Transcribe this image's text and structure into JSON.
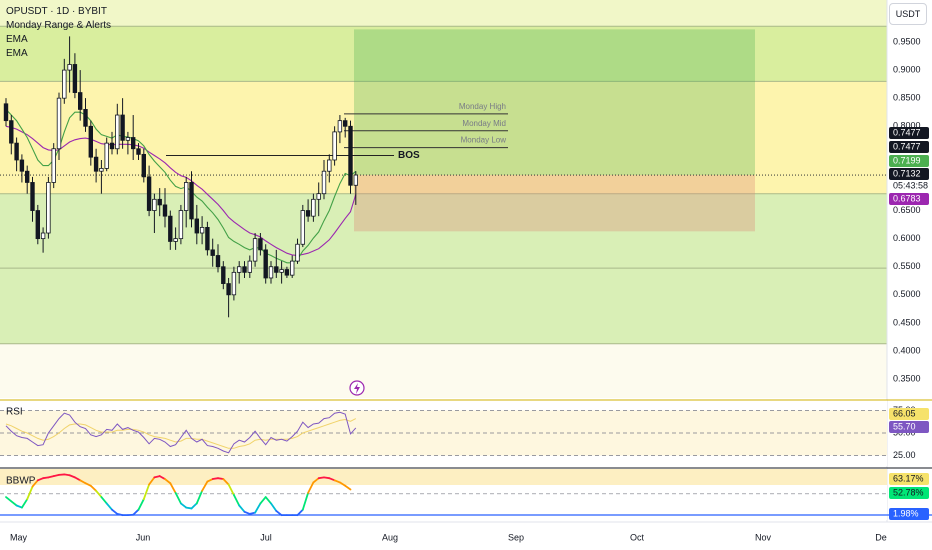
{
  "symbol": {
    "title": "OPUSDT · 1D · BYBIT",
    "indicator_1": "Monday Range & Alerts",
    "indicator_2": "EMA",
    "indicator_3": "EMA"
  },
  "currency_button": "USDT",
  "chart_data": [
    {
      "type": "candlestick",
      "title": "OPUSDT · 1D · BYBIT",
      "x_labels": [
        "May",
        "Jun",
        "Jul",
        "Aug",
        "Sep",
        "Oct",
        "Nov",
        "De"
      ],
      "price_ticks": [
        "0.9500",
        "0.9000",
        "0.8500",
        "0.8000",
        "0.6500",
        "0.6000",
        "0.5500",
        "0.5000",
        "0.4500",
        "0.4000",
        "0.3500"
      ],
      "ylim": [
        0.33,
        0.99
      ],
      "price_tags": [
        {
          "label": "0.7477",
          "color": "#131722"
        },
        {
          "label": "0.7477",
          "color": "#131722"
        },
        {
          "label": "0.7199",
          "color": "#4caf50"
        },
        {
          "label": "0.7132",
          "color": "#131722"
        },
        {
          "label": "05:43:58",
          "color": "#131722"
        },
        {
          "label": "0.6783",
          "color": "#9c27b0"
        }
      ],
      "current_price": 0.7132,
      "countdown": "05:43:58",
      "ema_fast_last": 0.7199,
      "ema_slow_last": 0.6783,
      "annotations": {
        "monday_high": "Monday High",
        "monday_mid": "Monday Mid",
        "monday_low": "Monday Low",
        "bos": "BOS"
      },
      "levels": {
        "monday_high": 0.822,
        "monday_mid": 0.792,
        "monday_low": 0.762,
        "bos": 0.762,
        "top_line": 0.978,
        "band_top": 0.88,
        "band_bottom": 0.68,
        "lower_line": 0.5475,
        "green_bottom": 0.413,
        "long_target": 0.9725,
        "long_entry": 0.7132,
        "long_stop": 0.613
      },
      "candles": [
        {
          "o": 0.84,
          "h": 0.85,
          "l": 0.8,
          "c": 0.81
        },
        {
          "o": 0.81,
          "h": 0.82,
          "l": 0.75,
          "c": 0.77
        },
        {
          "o": 0.77,
          "h": 0.78,
          "l": 0.72,
          "c": 0.74
        },
        {
          "o": 0.74,
          "h": 0.75,
          "l": 0.7,
          "c": 0.72
        },
        {
          "o": 0.72,
          "h": 0.73,
          "l": 0.68,
          "c": 0.7
        },
        {
          "o": 0.7,
          "h": 0.71,
          "l": 0.63,
          "c": 0.65
        },
        {
          "o": 0.65,
          "h": 0.66,
          "l": 0.59,
          "c": 0.6
        },
        {
          "o": 0.6,
          "h": 0.62,
          "l": 0.575,
          "c": 0.61
        },
        {
          "o": 0.61,
          "h": 0.71,
          "l": 0.6,
          "c": 0.7
        },
        {
          "o": 0.7,
          "h": 0.77,
          "l": 0.69,
          "c": 0.76
        },
        {
          "o": 0.76,
          "h": 0.86,
          "l": 0.74,
          "c": 0.85
        },
        {
          "o": 0.85,
          "h": 0.92,
          "l": 0.84,
          "c": 0.9
        },
        {
          "o": 0.9,
          "h": 0.96,
          "l": 0.86,
          "c": 0.91
        },
        {
          "o": 0.91,
          "h": 0.93,
          "l": 0.85,
          "c": 0.86
        },
        {
          "o": 0.86,
          "h": 0.9,
          "l": 0.81,
          "c": 0.83
        },
        {
          "o": 0.83,
          "h": 0.85,
          "l": 0.79,
          "c": 0.8
        },
        {
          "o": 0.8,
          "h": 0.81,
          "l": 0.73,
          "c": 0.745
        },
        {
          "o": 0.745,
          "h": 0.76,
          "l": 0.7,
          "c": 0.72
        },
        {
          "o": 0.72,
          "h": 0.74,
          "l": 0.68,
          "c": 0.725
        },
        {
          "o": 0.725,
          "h": 0.78,
          "l": 0.72,
          "c": 0.77
        },
        {
          "o": 0.77,
          "h": 0.79,
          "l": 0.75,
          "c": 0.76
        },
        {
          "o": 0.76,
          "h": 0.84,
          "l": 0.75,
          "c": 0.82
        },
        {
          "o": 0.82,
          "h": 0.85,
          "l": 0.76,
          "c": 0.775
        },
        {
          "o": 0.775,
          "h": 0.79,
          "l": 0.75,
          "c": 0.78
        },
        {
          "o": 0.78,
          "h": 0.82,
          "l": 0.74,
          "c": 0.76
        },
        {
          "o": 0.76,
          "h": 0.77,
          "l": 0.74,
          "c": 0.75
        },
        {
          "o": 0.75,
          "h": 0.76,
          "l": 0.7,
          "c": 0.71
        },
        {
          "o": 0.71,
          "h": 0.73,
          "l": 0.64,
          "c": 0.65
        },
        {
          "o": 0.65,
          "h": 0.68,
          "l": 0.61,
          "c": 0.67
        },
        {
          "o": 0.67,
          "h": 0.69,
          "l": 0.64,
          "c": 0.66
        },
        {
          "o": 0.66,
          "h": 0.69,
          "l": 0.62,
          "c": 0.64
        },
        {
          "o": 0.64,
          "h": 0.65,
          "l": 0.58,
          "c": 0.595
        },
        {
          "o": 0.595,
          "h": 0.62,
          "l": 0.58,
          "c": 0.6
        },
        {
          "o": 0.6,
          "h": 0.66,
          "l": 0.59,
          "c": 0.65
        },
        {
          "o": 0.65,
          "h": 0.71,
          "l": 0.62,
          "c": 0.7
        },
        {
          "o": 0.7,
          "h": 0.72,
          "l": 0.62,
          "c": 0.635
        },
        {
          "o": 0.635,
          "h": 0.66,
          "l": 0.59,
          "c": 0.61
        },
        {
          "o": 0.61,
          "h": 0.64,
          "l": 0.59,
          "c": 0.62
        },
        {
          "o": 0.62,
          "h": 0.63,
          "l": 0.57,
          "c": 0.58
        },
        {
          "o": 0.58,
          "h": 0.6,
          "l": 0.55,
          "c": 0.57
        },
        {
          "o": 0.57,
          "h": 0.59,
          "l": 0.54,
          "c": 0.55
        },
        {
          "o": 0.55,
          "h": 0.56,
          "l": 0.51,
          "c": 0.52
        },
        {
          "o": 0.52,
          "h": 0.53,
          "l": 0.46,
          "c": 0.5
        },
        {
          "o": 0.5,
          "h": 0.55,
          "l": 0.49,
          "c": 0.54
        },
        {
          "o": 0.54,
          "h": 0.56,
          "l": 0.52,
          "c": 0.55
        },
        {
          "o": 0.55,
          "h": 0.56,
          "l": 0.53,
          "c": 0.54
        },
        {
          "o": 0.54,
          "h": 0.57,
          "l": 0.53,
          "c": 0.56
        },
        {
          "o": 0.56,
          "h": 0.61,
          "l": 0.55,
          "c": 0.6
        },
        {
          "o": 0.6,
          "h": 0.61,
          "l": 0.57,
          "c": 0.58
        },
        {
          "o": 0.58,
          "h": 0.59,
          "l": 0.52,
          "c": 0.53
        },
        {
          "o": 0.53,
          "h": 0.56,
          "l": 0.52,
          "c": 0.55
        },
        {
          "o": 0.55,
          "h": 0.58,
          "l": 0.53,
          "c": 0.54
        },
        {
          "o": 0.54,
          "h": 0.56,
          "l": 0.52,
          "c": 0.545
        },
        {
          "o": 0.545,
          "h": 0.55,
          "l": 0.53,
          "c": 0.535
        },
        {
          "o": 0.535,
          "h": 0.57,
          "l": 0.53,
          "c": 0.56
        },
        {
          "o": 0.56,
          "h": 0.6,
          "l": 0.555,
          "c": 0.59
        },
        {
          "o": 0.59,
          "h": 0.66,
          "l": 0.585,
          "c": 0.65
        },
        {
          "o": 0.65,
          "h": 0.67,
          "l": 0.63,
          "c": 0.64
        },
        {
          "o": 0.64,
          "h": 0.68,
          "l": 0.63,
          "c": 0.67
        },
        {
          "o": 0.67,
          "h": 0.7,
          "l": 0.64,
          "c": 0.68
        },
        {
          "o": 0.68,
          "h": 0.74,
          "l": 0.67,
          "c": 0.72
        },
        {
          "o": 0.72,
          "h": 0.75,
          "l": 0.7,
          "c": 0.74
        },
        {
          "o": 0.74,
          "h": 0.8,
          "l": 0.73,
          "c": 0.79
        },
        {
          "o": 0.79,
          "h": 0.82,
          "l": 0.77,
          "c": 0.81
        },
        {
          "o": 0.81,
          "h": 0.815,
          "l": 0.78,
          "c": 0.8
        },
        {
          "o": 0.8,
          "h": 0.81,
          "l": 0.68,
          "c": 0.695
        },
        {
          "o": 0.695,
          "h": 0.72,
          "l": 0.66,
          "c": 0.7132
        }
      ],
      "ema_fast": [
        0.83,
        0.82,
        0.81,
        0.795,
        0.78,
        0.76,
        0.74,
        0.73,
        0.73,
        0.74,
        0.76,
        0.79,
        0.815,
        0.825,
        0.825,
        0.82,
        0.81,
        0.795,
        0.785,
        0.782,
        0.779,
        0.785,
        0.782,
        0.781,
        0.778,
        0.774,
        0.765,
        0.75,
        0.738,
        0.728,
        0.718,
        0.704,
        0.693,
        0.689,
        0.692,
        0.684,
        0.674,
        0.667,
        0.656,
        0.646,
        0.634,
        0.619,
        0.602,
        0.595,
        0.59,
        0.584,
        0.58,
        0.584,
        0.583,
        0.574,
        0.57,
        0.565,
        0.561,
        0.557,
        0.557,
        0.563,
        0.578,
        0.588,
        0.601,
        0.612,
        0.632,
        0.65,
        0.675,
        0.698,
        0.716,
        0.712,
        0.7199
      ],
      "ema_slow": [
        0.8,
        0.798,
        0.795,
        0.79,
        0.785,
        0.778,
        0.77,
        0.762,
        0.758,
        0.757,
        0.758,
        0.765,
        0.772,
        0.776,
        0.778,
        0.779,
        0.777,
        0.773,
        0.769,
        0.768,
        0.767,
        0.768,
        0.768,
        0.768,
        0.767,
        0.765,
        0.761,
        0.754,
        0.748,
        0.742,
        0.735,
        0.726,
        0.718,
        0.712,
        0.709,
        0.703,
        0.695,
        0.688,
        0.679,
        0.67,
        0.661,
        0.65,
        0.638,
        0.63,
        0.623,
        0.616,
        0.61,
        0.607,
        0.603,
        0.596,
        0.59,
        0.584,
        0.579,
        0.574,
        0.571,
        0.57,
        0.572,
        0.574,
        0.578,
        0.582,
        0.59,
        0.598,
        0.61,
        0.623,
        0.636,
        0.648,
        0.6783
      ]
    },
    {
      "type": "line",
      "title": "RSI",
      "ylim": [
        20,
        80
      ],
      "ticks": [
        "75.00",
        "50.00",
        "25.00"
      ],
      "value_tags": [
        {
          "label": "66.05",
          "color": "#f6e26b"
        },
        {
          "label": "55.70",
          "color": "#7e57c2"
        }
      ],
      "rsi": [
        58,
        52,
        47,
        45,
        44,
        40,
        36,
        37,
        50,
        58,
        66,
        72,
        70,
        62,
        57,
        55,
        48,
        46,
        48,
        54,
        53,
        60,
        54,
        56,
        53,
        51,
        45,
        38,
        44,
        43,
        40,
        35,
        37,
        45,
        53,
        44,
        40,
        43,
        36,
        35,
        33,
        30,
        28,
        38,
        42,
        40,
        45,
        52,
        44,
        37,
        45,
        42,
        43,
        41,
        46,
        52,
        62,
        56,
        60,
        61,
        66,
        67,
        72,
        73,
        71,
        49,
        55.7
      ],
      "rsi_ma": [
        60,
        58,
        55,
        52,
        50,
        47,
        44,
        42,
        43,
        46,
        50,
        55,
        59,
        60,
        60,
        59,
        56,
        53,
        51,
        51,
        51,
        53,
        53,
        54,
        54,
        53,
        51,
        48,
        46,
        45,
        44,
        42,
        40,
        41,
        44,
        44,
        43,
        43,
        41,
        39,
        37,
        35,
        33,
        33,
        35,
        36,
        38,
        42,
        43,
        42,
        43,
        43,
        43,
        43,
        44,
        46,
        50,
        52,
        54,
        56,
        58,
        60,
        62,
        64,
        65,
        63,
        66.05
      ]
    },
    {
      "type": "line",
      "title": "BBWP",
      "ylim": [
        0,
        100
      ],
      "value_tags": [
        {
          "label": "63.17%",
          "color": "#f6e26b"
        },
        {
          "label": "52.78%",
          "color": "#00e676"
        },
        {
          "label": "1.98%",
          "color": "#2962ff"
        }
      ],
      "bbwp": [
        45,
        35,
        25,
        20,
        40,
        70,
        85,
        90,
        92,
        95,
        98,
        99,
        97,
        92,
        85,
        78,
        72,
        60,
        45,
        30,
        15,
        5,
        2,
        2,
        3,
        15,
        40,
        75,
        92,
        95,
        88,
        78,
        55,
        30,
        20,
        18,
        30,
        60,
        82,
        88,
        90,
        88,
        75,
        50,
        25,
        10,
        5,
        8,
        30,
        45,
        30,
        12,
        2,
        2,
        2,
        2,
        15,
        55,
        80,
        90,
        92,
        90,
        85,
        80,
        72,
        63.17
      ],
      "ma": [
        52.78
      ]
    }
  ]
}
